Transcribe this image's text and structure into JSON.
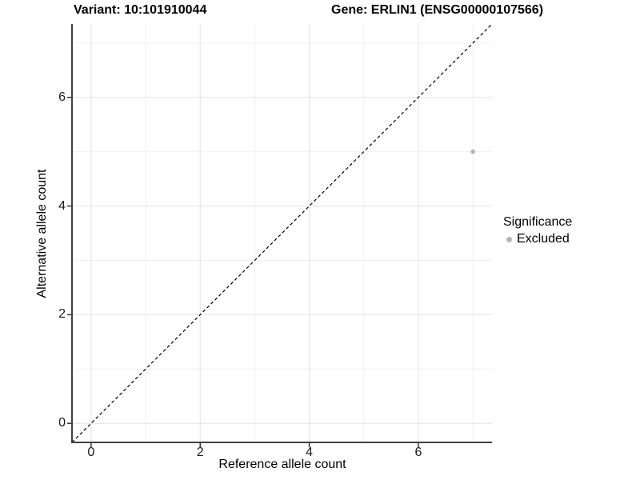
{
  "header": {
    "variant_title": "Variant: 10:101910044",
    "gene_title": "Gene: ERLIN1 (ENSG00000107566)"
  },
  "chart_data": {
    "type": "scatter",
    "xlabel": "Reference allele count",
    "ylabel": "Alternative allele count",
    "xlim": [
      0,
      7
    ],
    "ylim": [
      0,
      7
    ],
    "expansion": 0.05,
    "xticks": [
      0,
      2,
      4,
      6
    ],
    "yticks": [
      0,
      2,
      4,
      6
    ],
    "minor_xticks": [
      1,
      3,
      5,
      7
    ],
    "minor_yticks": [
      1,
      3,
      5,
      7
    ],
    "grid": "major+minor",
    "identity_line": {
      "style": "dashed",
      "color": "#000000"
    },
    "series": [
      {
        "name": "Excluded",
        "color": "#b3b3b3",
        "points": [
          [
            7,
            5
          ]
        ]
      }
    ],
    "legend": {
      "title": "Significance",
      "position": "right"
    }
  },
  "colors": {
    "background": "#ffffff",
    "grid_major": "#e2e2e2",
    "grid_minor": "#f0f0f0",
    "axis_line": "#404040",
    "tick_mark": "#333333",
    "text": "#000000"
  }
}
